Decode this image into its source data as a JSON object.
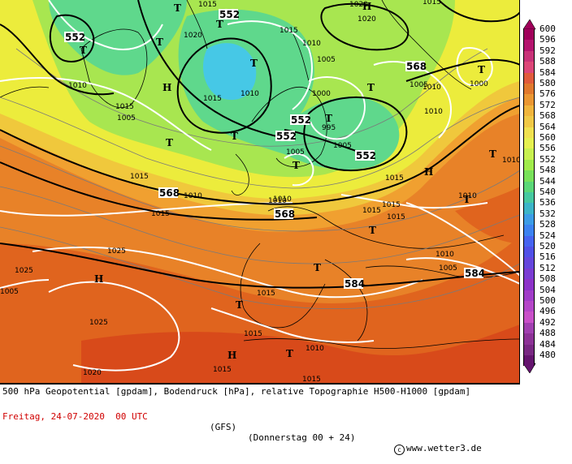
{
  "map": {
    "pressure_labels": [
      {
        "value": "1015"
      },
      {
        "value": "1020"
      },
      {
        "value": "1015"
      },
      {
        "value": "1010"
      },
      {
        "value": "1005"
      },
      {
        "value": "1010"
      },
      {
        "value": "1015"
      },
      {
        "value": "1010"
      },
      {
        "value": "1015"
      },
      {
        "value": "1005"
      },
      {
        "value": "995"
      },
      {
        "value": "1000"
      },
      {
        "value": "1005"
      },
      {
        "value": "1015"
      },
      {
        "value": "1010"
      },
      {
        "value": "1015"
      },
      {
        "value": "1010"
      },
      {
        "value": "1010"
      },
      {
        "value": "1015"
      },
      {
        "value": "1015"
      },
      {
        "value": "1025"
      },
      {
        "value": "1025"
      },
      {
        "value": "1025"
      },
      {
        "value": "1020"
      },
      {
        "value": "1015"
      },
      {
        "value": "1015"
      },
      {
        "value": "1015"
      },
      {
        "value": "1010"
      },
      {
        "value": "1015"
      },
      {
        "value": "1010"
      },
      {
        "value": "1005"
      },
      {
        "value": "1010"
      },
      {
        "value": "1020"
      },
      {
        "value": "1005"
      },
      {
        "value": "1005"
      },
      {
        "value": "1000"
      },
      {
        "value": "1010"
      },
      {
        "value": "1010"
      },
      {
        "value": "1015"
      },
      {
        "value": "1010"
      },
      {
        "value": "1015"
      },
      {
        "value": "1020"
      },
      {
        "value": "1015"
      },
      {
        "value": "1005"
      }
    ],
    "geopotential_labels": [
      {
        "value": "552"
      },
      {
        "value": "552"
      },
      {
        "value": "552"
      },
      {
        "value": "552"
      },
      {
        "value": "552"
      },
      {
        "value": "568"
      },
      {
        "value": "568"
      },
      {
        "value": "568"
      },
      {
        "value": "584"
      },
      {
        "value": "584"
      }
    ],
    "high_symbol": "H",
    "low_symbol": "T",
    "lows_count_note": "",
    "colors": {
      "very_low": "#46c8e6",
      "low": "#5fd88c",
      "mid": "#a8e650",
      "yellow": "#ecec3c",
      "yellow_orange": "#f0c83c",
      "orange": "#f0a030",
      "dark_orange": "#e88228",
      "red_orange": "#e0641e",
      "red": "#d84a1a"
    }
  },
  "legend": {
    "levels": [
      "600",
      "596",
      "592",
      "588",
      "584",
      "580",
      "576",
      "572",
      "568",
      "564",
      "560",
      "556",
      "552",
      "548",
      "544",
      "540",
      "536",
      "532",
      "528",
      "524",
      "520",
      "516",
      "512",
      "508",
      "504",
      "500",
      "496",
      "492",
      "488",
      "484",
      "480"
    ],
    "colors": [
      "#a0005a",
      "#b4146e",
      "#c83278",
      "#dc4678",
      "#e05a3c",
      "#e0782d",
      "#ea9632",
      "#f0b43c",
      "#f0c846",
      "#f0e150",
      "#e6f050",
      "#c8f050",
      "#a0eb4b",
      "#78e15a",
      "#5ad778",
      "#46c8a0",
      "#3cb4c8",
      "#3c9ce6",
      "#3c82f0",
      "#4664f0",
      "#5050e6",
      "#6446dc",
      "#7a3cd2",
      "#8c32c8",
      "#a03cc8",
      "#b446c8",
      "#c850c8",
      "#a040b0",
      "#8c3296",
      "#782882",
      "#64146e"
    ]
  },
  "caption": {
    "line1": "500 hPa Geopotential [gpdam], Bodendruck [hPa], relative Topographie H500-H1000 [gpdam]",
    "date": "Freitag, 24-07-2020  00 UTC",
    "model": "(GFS)",
    "valid": "(Donnerstag 00 + 24)",
    "copyright": "www.wetter3.de",
    "copyright_mark": "c"
  }
}
